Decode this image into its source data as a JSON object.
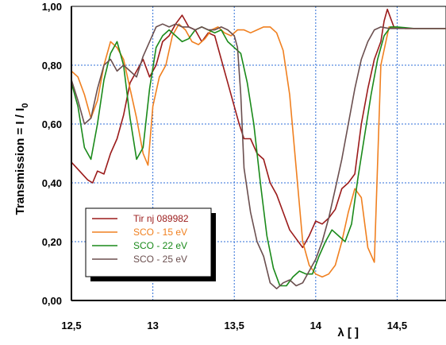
{
  "chart_data": {
    "type": "line",
    "ylabel": "Transmission = I / I",
    "ylabel_sub": "0",
    "xlabel": "λ [ ]",
    "xlim": [
      12.5,
      14.8
    ],
    "ylim": [
      0,
      1.0
    ],
    "grid": true,
    "legend_position": "bottom-left",
    "y_ticks": [
      {
        "value": 0.0,
        "label": "0,00"
      },
      {
        "value": 0.2,
        "label": "0,20"
      },
      {
        "value": 0.4,
        "label": "0,40"
      },
      {
        "value": 0.6,
        "label": "0,60"
      },
      {
        "value": 0.8,
        "label": "0,80"
      },
      {
        "value": 1.0,
        "label": "1,00"
      }
    ],
    "x_ticks": [
      {
        "value": 12.5,
        "label": "12,5"
      },
      {
        "value": 13.0,
        "label": "13"
      },
      {
        "value": 13.5,
        "label": "13,5"
      },
      {
        "value": 14.0,
        "label": "14"
      },
      {
        "value": 14.5,
        "label": "14,5"
      }
    ],
    "series": [
      {
        "name": "Tir nj 089982",
        "color": "#9b1b1b",
        "x": [
          12.5,
          12.55,
          12.6,
          12.63,
          12.66,
          12.7,
          12.74,
          12.78,
          12.82,
          12.86,
          12.9,
          12.94,
          12.98,
          13.02,
          13.06,
          13.1,
          13.14,
          13.18,
          13.2,
          13.22,
          13.26,
          13.3,
          13.34,
          13.38,
          13.42,
          13.46,
          13.5,
          13.53,
          13.56,
          13.6,
          13.64,
          13.68,
          13.72,
          13.76,
          13.8,
          13.84,
          13.88,
          13.92,
          13.96,
          14.0,
          14.04,
          14.08,
          14.12,
          14.16,
          14.2,
          14.24,
          14.28,
          14.32,
          14.36,
          14.4,
          14.42,
          14.44,
          14.48,
          14.55,
          14.65,
          14.8
        ],
        "y": [
          0.47,
          0.44,
          0.41,
          0.4,
          0.44,
          0.43,
          0.5,
          0.55,
          0.63,
          0.74,
          0.78,
          0.82,
          0.76,
          0.8,
          0.88,
          0.9,
          0.94,
          0.97,
          0.95,
          0.93,
          0.92,
          0.88,
          0.91,
          0.9,
          0.82,
          0.74,
          0.66,
          0.6,
          0.55,
          0.55,
          0.5,
          0.48,
          0.4,
          0.36,
          0.3,
          0.24,
          0.21,
          0.18,
          0.22,
          0.27,
          0.26,
          0.28,
          0.31,
          0.38,
          0.4,
          0.43,
          0.6,
          0.72,
          0.82,
          0.88,
          0.95,
          0.99,
          0.93,
          0.925,
          0.925,
          0.925
        ]
      },
      {
        "name": "SCO - 15 eV",
        "color": "#f08020",
        "x": [
          12.5,
          12.54,
          12.58,
          12.62,
          12.66,
          12.7,
          12.74,
          12.78,
          12.82,
          12.86,
          12.9,
          12.94,
          12.97,
          13.0,
          13.04,
          13.08,
          13.12,
          13.16,
          13.2,
          13.24,
          13.28,
          13.32,
          13.36,
          13.4,
          13.44,
          13.48,
          13.52,
          13.56,
          13.6,
          13.64,
          13.68,
          13.72,
          13.76,
          13.8,
          13.84,
          13.88,
          13.92,
          13.96,
          14.0,
          14.04,
          14.08,
          14.12,
          14.16,
          14.2,
          14.24,
          14.28,
          14.32,
          14.36,
          14.4,
          14.45,
          14.55,
          14.65,
          14.8
        ],
        "y": [
          0.78,
          0.76,
          0.7,
          0.62,
          0.68,
          0.8,
          0.88,
          0.86,
          0.82,
          0.72,
          0.62,
          0.5,
          0.46,
          0.66,
          0.76,
          0.8,
          0.9,
          0.94,
          0.92,
          0.88,
          0.87,
          0.89,
          0.92,
          0.93,
          0.91,
          0.9,
          0.92,
          0.92,
          0.91,
          0.92,
          0.93,
          0.93,
          0.91,
          0.85,
          0.7,
          0.45,
          0.2,
          0.12,
          0.09,
          0.08,
          0.09,
          0.12,
          0.2,
          0.3,
          0.38,
          0.35,
          0.18,
          0.13,
          0.8,
          0.93,
          0.925,
          0.925,
          0.925
        ]
      },
      {
        "name": "SCO - 22 eV",
        "color": "#1a8a1a",
        "x": [
          12.5,
          12.54,
          12.58,
          12.62,
          12.66,
          12.7,
          12.74,
          12.78,
          12.82,
          12.86,
          12.9,
          12.94,
          12.98,
          13.02,
          13.06,
          13.1,
          13.14,
          13.18,
          13.22,
          13.26,
          13.3,
          13.34,
          13.38,
          13.42,
          13.46,
          13.5,
          13.54,
          13.58,
          13.62,
          13.66,
          13.7,
          13.74,
          13.78,
          13.82,
          13.86,
          13.9,
          13.94,
          13.98,
          14.02,
          14.06,
          14.1,
          14.14,
          14.18,
          14.22,
          14.26,
          14.3,
          14.34,
          14.38,
          14.42,
          14.46,
          14.5,
          14.6,
          14.8
        ],
        "y": [
          0.74,
          0.66,
          0.52,
          0.48,
          0.6,
          0.75,
          0.84,
          0.88,
          0.8,
          0.62,
          0.48,
          0.52,
          0.72,
          0.86,
          0.9,
          0.92,
          0.9,
          0.88,
          0.89,
          0.92,
          0.93,
          0.92,
          0.91,
          0.92,
          0.88,
          0.86,
          0.84,
          0.74,
          0.6,
          0.4,
          0.22,
          0.11,
          0.05,
          0.05,
          0.08,
          0.1,
          0.09,
          0.09,
          0.15,
          0.2,
          0.24,
          0.22,
          0.2,
          0.26,
          0.42,
          0.56,
          0.7,
          0.82,
          0.9,
          0.93,
          0.93,
          0.925,
          0.925
        ]
      },
      {
        "name": "SCO - 25 eV",
        "color": "#6b4f4f",
        "x": [
          12.5,
          12.54,
          12.58,
          12.62,
          12.66,
          12.7,
          12.74,
          12.78,
          12.82,
          12.86,
          12.9,
          12.94,
          12.98,
          13.02,
          13.06,
          13.1,
          13.14,
          13.18,
          13.22,
          13.26,
          13.3,
          13.34,
          13.38,
          13.42,
          13.46,
          13.5,
          13.52,
          13.54,
          13.56,
          13.6,
          13.64,
          13.68,
          13.72,
          13.76,
          13.8,
          13.84,
          13.88,
          13.92,
          13.96,
          14.0,
          14.04,
          14.08,
          14.12,
          14.16,
          14.2,
          14.24,
          14.28,
          14.32,
          14.36,
          14.4,
          14.45,
          14.55,
          14.65,
          14.8
        ],
        "y": [
          0.75,
          0.68,
          0.6,
          0.62,
          0.72,
          0.8,
          0.82,
          0.78,
          0.8,
          0.78,
          0.76,
          0.83,
          0.88,
          0.93,
          0.94,
          0.93,
          0.94,
          0.93,
          0.93,
          0.92,
          0.93,
          0.92,
          0.92,
          0.93,
          0.92,
          0.9,
          0.86,
          0.7,
          0.45,
          0.3,
          0.2,
          0.15,
          0.06,
          0.04,
          0.06,
          0.07,
          0.05,
          0.06,
          0.1,
          0.14,
          0.2,
          0.28,
          0.38,
          0.48,
          0.6,
          0.72,
          0.82,
          0.88,
          0.92,
          0.93,
          0.925,
          0.925,
          0.925,
          0.925
        ]
      }
    ]
  }
}
